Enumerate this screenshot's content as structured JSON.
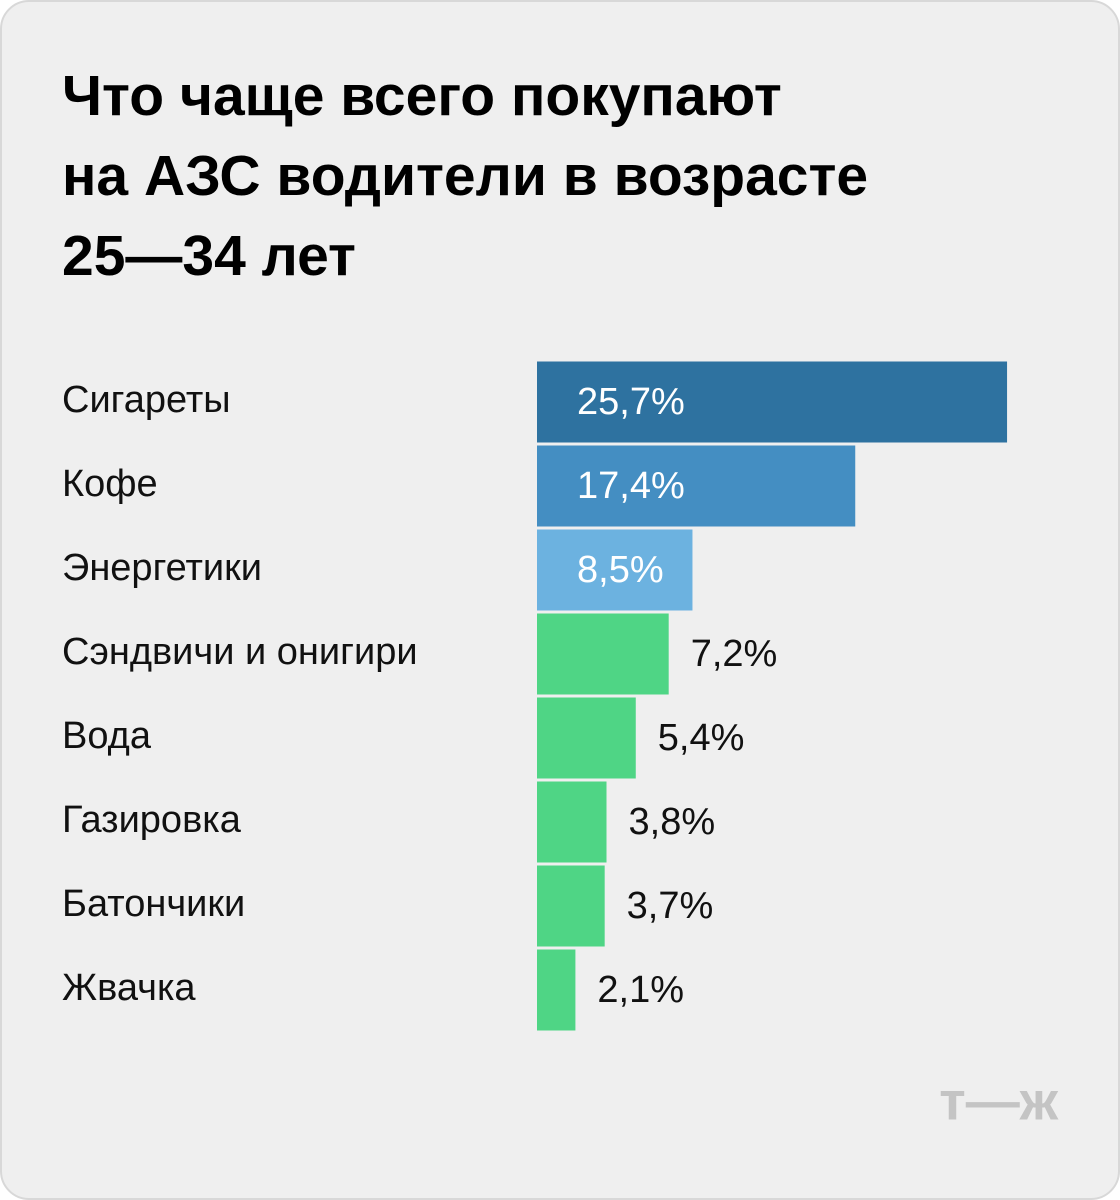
{
  "chart_data": {
    "type": "bar",
    "orientation": "horizontal",
    "title": [
      "Что чаще всего покупают",
      "на АЗС водители в возрасте",
      "25—34 лет"
    ],
    "categories": [
      "Сигареты",
      "Кофе",
      "Энергетики",
      "Сэндвичи и онигири",
      "Вода",
      "Газировка",
      "Батончики",
      "Жвачка"
    ],
    "values": [
      25.7,
      17.4,
      8.5,
      7.2,
      5.4,
      3.8,
      3.7,
      2.1
    ],
    "value_labels": [
      "25,7%",
      "17,4%",
      "8,5%",
      "7,2%",
      "5,4%",
      "3,8%",
      "3,7%",
      "2,1%"
    ],
    "colors": [
      "#2e72a0",
      "#448ec2",
      "#6cb2e0",
      "#4fd585",
      "#4fd585",
      "#4fd585",
      "#4fd585",
      "#4fd585"
    ]
  },
  "logo": "т—ж"
}
